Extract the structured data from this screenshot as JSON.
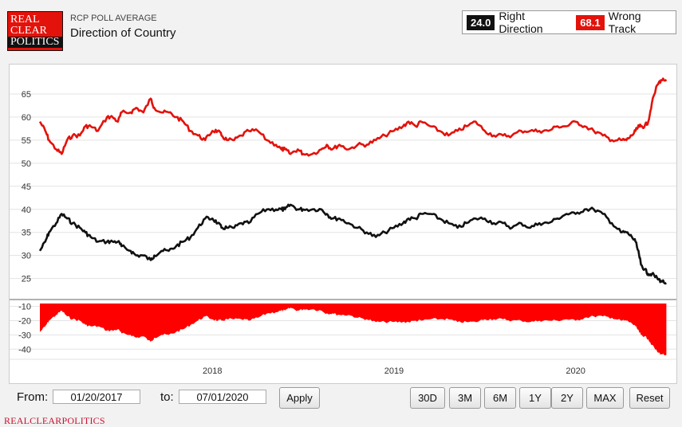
{
  "header": {
    "logo_lines": [
      "REAL",
      "CLEAR",
      "POLITICS"
    ],
    "kicker": "RCP POLL AVERAGE",
    "title": "Direction of Country"
  },
  "legend": {
    "right": {
      "value": "24.0",
      "label": "Right Direction"
    },
    "wrong": {
      "value": "68.1",
      "label": "Wrong Track"
    }
  },
  "controls": {
    "from_label": "From:",
    "from_value": "01/20/2017",
    "to_label": "to:",
    "to_value": "07/01/2020",
    "apply": "Apply",
    "ranges": [
      "30D",
      "3M",
      "6M",
      "1Y",
      "2Y",
      "MAX",
      "Reset"
    ]
  },
  "footer": "REALCLEARPOLITICS",
  "colors": {
    "right": "#111111",
    "wrong": "#e3120b",
    "spread": "#ff0000"
  },
  "chart_data": {
    "type": "line",
    "title": "Direction of Country",
    "x_range": [
      2017.05,
      2020.52
    ],
    "x_ticks": [
      {
        "value": 2018.0,
        "label": "2018"
      },
      {
        "value": 2019.0,
        "label": "2019"
      },
      {
        "value": 2020.0,
        "label": "2020"
      }
    ],
    "upper_panel": {
      "ylim": [
        22,
        70
      ],
      "y_ticks": [
        25,
        30,
        35,
        40,
        45,
        50,
        55,
        60,
        65
      ],
      "series": [
        {
          "name": "Wrong Track",
          "color": "#e3120b",
          "x": [
            2017.05,
            2017.08,
            2017.1,
            2017.14,
            2017.17,
            2017.2,
            2017.23,
            2017.27,
            2017.3,
            2017.33,
            2017.37,
            2017.42,
            2017.45,
            2017.48,
            2017.5,
            2017.55,
            2017.58,
            2017.62,
            2017.66,
            2017.68,
            2017.72,
            2017.76,
            2017.8,
            2017.84,
            2017.88,
            2017.92,
            2017.96,
            2018.0,
            2018.03,
            2018.05,
            2018.08,
            2018.12,
            2018.16,
            2018.2,
            2018.25,
            2018.3,
            2018.35,
            2018.38,
            2018.4,
            2018.43,
            2018.47,
            2018.5,
            2018.55,
            2018.6,
            2018.63,
            2018.66,
            2018.7,
            2018.75,
            2018.8,
            2018.85,
            2018.9,
            2018.95,
            2019.0,
            2019.05,
            2019.08,
            2019.12,
            2019.15,
            2019.2,
            2019.25,
            2019.3,
            2019.35,
            2019.4,
            2019.45,
            2019.5,
            2019.55,
            2019.6,
            2019.65,
            2019.7,
            2019.75,
            2019.8,
            2019.85,
            2019.9,
            2019.95,
            2020.0,
            2020.05,
            2020.1,
            2020.15,
            2020.2,
            2020.25,
            2020.28,
            2020.31,
            2020.33,
            2020.35,
            2020.36,
            2020.38,
            2020.4,
            2020.42,
            2020.45,
            2020.47,
            2020.5
          ],
          "values": [
            59,
            57,
            55,
            53,
            52,
            55,
            56,
            56,
            58,
            58,
            57,
            60,
            60,
            59,
            61,
            61,
            62,
            61,
            64,
            62,
            61,
            61,
            60,
            59,
            57,
            56,
            55,
            57,
            57,
            56,
            55,
            55,
            56,
            57,
            57,
            55,
            54,
            53,
            53,
            52,
            53,
            52,
            52,
            53,
            54,
            53,
            54,
            53,
            54,
            54,
            55,
            56,
            57,
            58,
            59,
            58,
            59,
            58,
            57,
            56,
            57,
            58,
            59,
            57,
            56,
            56,
            56,
            57,
            57,
            57,
            57,
            58,
            58,
            59,
            58,
            57,
            56,
            55,
            55,
            55,
            56,
            57,
            58,
            58,
            58,
            59,
            63,
            67,
            68,
            68.1
          ]
        },
        {
          "name": "Right Direction",
          "color": "#111111",
          "x": [
            2017.05,
            2017.08,
            2017.1,
            2017.14,
            2017.17,
            2017.2,
            2017.23,
            2017.27,
            2017.3,
            2017.33,
            2017.37,
            2017.42,
            2017.45,
            2017.48,
            2017.5,
            2017.55,
            2017.58,
            2017.62,
            2017.66,
            2017.68,
            2017.72,
            2017.76,
            2017.8,
            2017.84,
            2017.88,
            2017.92,
            2017.96,
            2018.0,
            2018.03,
            2018.05,
            2018.08,
            2018.12,
            2018.16,
            2018.2,
            2018.25,
            2018.3,
            2018.35,
            2018.38,
            2018.4,
            2018.43,
            2018.47,
            2018.5,
            2018.55,
            2018.6,
            2018.63,
            2018.66,
            2018.7,
            2018.75,
            2018.8,
            2018.85,
            2018.9,
            2018.95,
            2019.0,
            2019.05,
            2019.08,
            2019.12,
            2019.15,
            2019.2,
            2019.25,
            2019.3,
            2019.35,
            2019.4,
            2019.45,
            2019.5,
            2019.55,
            2019.6,
            2019.65,
            2019.7,
            2019.75,
            2019.8,
            2019.85,
            2019.9,
            2019.95,
            2020.0,
            2020.05,
            2020.1,
            2020.15,
            2020.2,
            2020.25,
            2020.28,
            2020.31,
            2020.33,
            2020.35,
            2020.36,
            2020.38,
            2020.4,
            2020.42,
            2020.45,
            2020.47,
            2020.5
          ],
          "values": [
            31,
            33,
            35,
            37,
            39,
            38,
            37,
            36,
            35,
            34,
            33,
            33,
            33,
            33,
            32,
            31,
            30,
            30,
            29,
            30,
            31,
            31,
            32,
            33,
            34,
            36,
            38,
            38,
            37,
            36,
            36,
            36,
            37,
            37,
            39,
            40,
            40,
            40,
            40,
            41,
            40,
            40,
            40,
            40,
            39,
            38,
            38,
            37,
            36,
            35,
            34,
            35,
            36,
            37,
            38,
            38,
            39,
            39,
            38,
            37,
            36,
            37,
            38,
            38,
            37,
            37,
            36,
            37,
            36,
            37,
            37,
            38,
            39,
            39,
            40,
            40,
            39,
            37,
            35,
            35,
            34,
            33,
            30,
            28,
            27,
            26,
            26,
            25,
            24.5,
            24.0
          ]
        }
      ]
    },
    "lower_panel": {
      "name": "Spread",
      "ylim": [
        -46,
        -8
      ],
      "y_ticks": [
        -10,
        -20,
        -30,
        -40
      ],
      "x": [
        2017.05,
        2017.08,
        2017.1,
        2017.14,
        2017.17,
        2017.2,
        2017.23,
        2017.27,
        2017.3,
        2017.33,
        2017.37,
        2017.42,
        2017.45,
        2017.48,
        2017.5,
        2017.55,
        2017.58,
        2017.62,
        2017.66,
        2017.68,
        2017.72,
        2017.76,
        2017.8,
        2017.84,
        2017.88,
        2017.92,
        2017.96,
        2018.0,
        2018.03,
        2018.05,
        2018.08,
        2018.12,
        2018.16,
        2018.2,
        2018.25,
        2018.3,
        2018.35,
        2018.38,
        2018.4,
        2018.43,
        2018.47,
        2018.5,
        2018.55,
        2018.6,
        2018.63,
        2018.66,
        2018.7,
        2018.75,
        2018.8,
        2018.85,
        2018.9,
        2018.95,
        2019.0,
        2019.05,
        2019.08,
        2019.12,
        2019.15,
        2019.2,
        2019.25,
        2019.3,
        2019.35,
        2019.4,
        2019.45,
        2019.5,
        2019.55,
        2019.6,
        2019.65,
        2019.7,
        2019.75,
        2019.8,
        2019.85,
        2019.9,
        2019.95,
        2020.0,
        2020.05,
        2020.1,
        2020.15,
        2020.2,
        2020.25,
        2020.28,
        2020.31,
        2020.33,
        2020.35,
        2020.36,
        2020.38,
        2020.4,
        2020.42,
        2020.45,
        2020.47,
        2020.5
      ],
      "values": [
        -28,
        -24,
        -20,
        -16,
        -13,
        -17,
        -19,
        -20,
        -23,
        -24,
        -24,
        -27,
        -27,
        -26,
        -29,
        -30,
        -32,
        -31,
        -35,
        -32,
        -30,
        -30,
        -28,
        -26,
        -23,
        -20,
        -17,
        -19,
        -20,
        -20,
        -19,
        -19,
        -19,
        -20,
        -18,
        -15,
        -14,
        -13,
        -13,
        -11,
        -13,
        -12,
        -12,
        -13,
        -15,
        -15,
        -16,
        -16,
        -18,
        -19,
        -21,
        -21,
        -21,
        -21,
        -21,
        -20,
        -20,
        -19,
        -19,
        -19,
        -21,
        -21,
        -21,
        -19,
        -19,
        -19,
        -20,
        -20,
        -21,
        -20,
        -20,
        -20,
        -19,
        -20,
        -18,
        -17,
        -17,
        -18,
        -20,
        -20,
        -22,
        -24,
        -28,
        -30,
        -31,
        -33,
        -37,
        -42,
        -43.5,
        -44.1
      ]
    }
  }
}
